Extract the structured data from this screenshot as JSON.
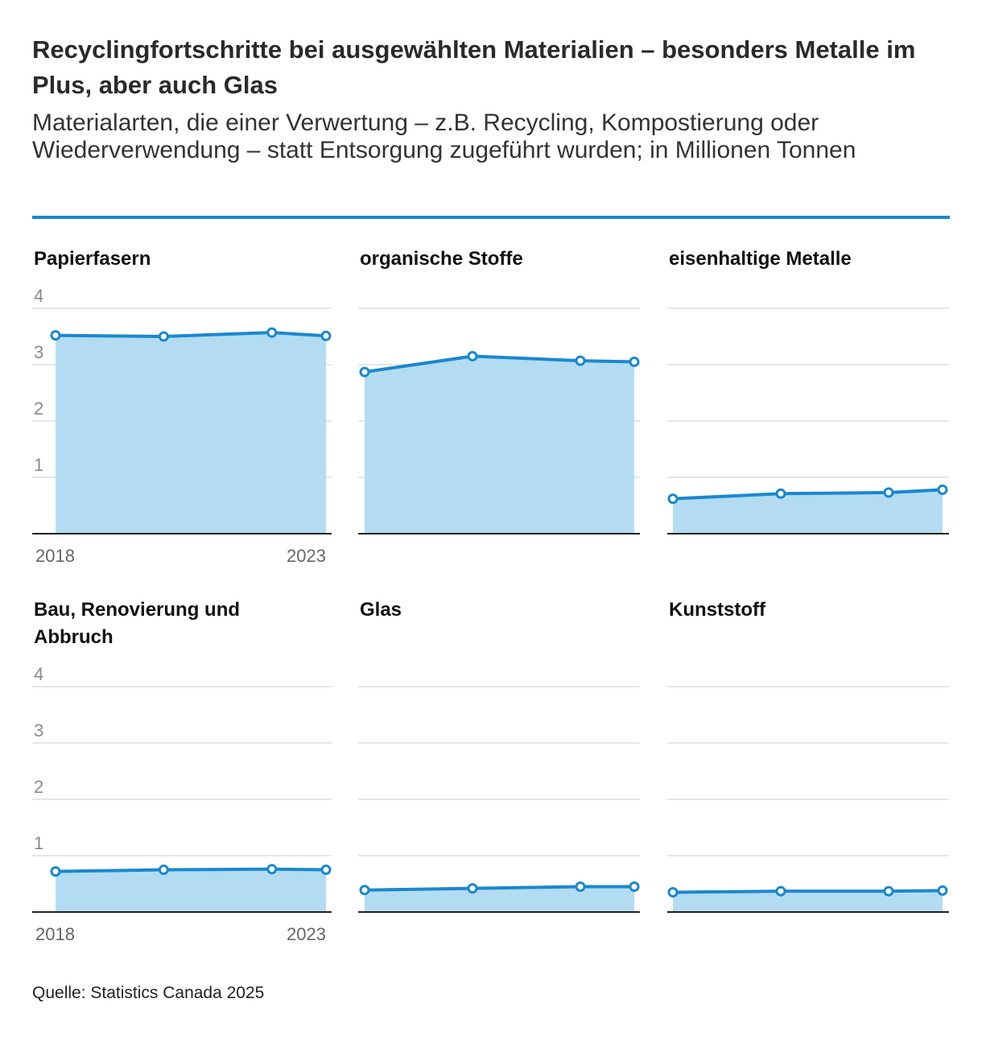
{
  "header": {
    "title": "Recyclingfortschritte bei ausgewählten Materialien – besonders Metalle im Plus, aber auch Glas",
    "subtitle": "Materialarten, die einer Verwertung – z.B. Recycling, Kompostierung oder Wiederverwendung – statt Entsorgung zugeführt wurden; in Millionen Tonnen"
  },
  "footer": {
    "source": "Quelle: Statistics Canada 2025"
  },
  "colors": {
    "line": "#1a88cf",
    "area": "#b3dcf2",
    "grid": "#dddddd",
    "axis": "#222222",
    "tick": "#8a8a8a"
  },
  "chart_data": [
    {
      "type": "area",
      "title": "Papierfasern",
      "x": [
        2018,
        2020,
        2022,
        2023
      ],
      "values": [
        3.52,
        3.5,
        3.57,
        3.51
      ],
      "ylim": [
        0,
        4
      ],
      "yticks": [
        "1",
        "2",
        "3",
        "4"
      ],
      "xtick_labels": [
        "2018",
        "2023"
      ],
      "show_axis_labels": true
    },
    {
      "type": "area",
      "title": "organische Stoffe",
      "x": [
        2018,
        2020,
        2022,
        2023
      ],
      "values": [
        2.87,
        3.15,
        3.07,
        3.05
      ],
      "ylim": [
        0,
        4
      ],
      "yticks": [
        "1",
        "2",
        "3",
        "4"
      ],
      "xtick_labels": [
        "2018",
        "2023"
      ],
      "show_axis_labels": false
    },
    {
      "type": "area",
      "title": "eisenhaltige Metalle",
      "x": [
        2018,
        2020,
        2022,
        2023
      ],
      "values": [
        0.62,
        0.71,
        0.73,
        0.78
      ],
      "ylim": [
        0,
        4
      ],
      "yticks": [
        "1",
        "2",
        "3",
        "4"
      ],
      "xtick_labels": [
        "2018",
        "2023"
      ],
      "show_axis_labels": false
    },
    {
      "type": "area",
      "title": "Bau, Renovierung und Abbruch",
      "x": [
        2018,
        2020,
        2022,
        2023
      ],
      "values": [
        0.72,
        0.75,
        0.76,
        0.75
      ],
      "ylim": [
        0,
        4
      ],
      "yticks": [
        "1",
        "2",
        "3",
        "4"
      ],
      "xtick_labels": [
        "2018",
        "2023"
      ],
      "show_axis_labels": true
    },
    {
      "type": "area",
      "title": "Glas",
      "x": [
        2018,
        2020,
        2022,
        2023
      ],
      "values": [
        0.39,
        0.42,
        0.45,
        0.45
      ],
      "ylim": [
        0,
        4
      ],
      "yticks": [
        "1",
        "2",
        "3",
        "4"
      ],
      "xtick_labels": [
        "2018",
        "2023"
      ],
      "show_axis_labels": false
    },
    {
      "type": "area",
      "title": "Kunststoff",
      "x": [
        2018,
        2020,
        2022,
        2023
      ],
      "values": [
        0.35,
        0.37,
        0.37,
        0.38
      ],
      "ylim": [
        0,
        4
      ],
      "yticks": [
        "1",
        "2",
        "3",
        "4"
      ],
      "xtick_labels": [
        "2018",
        "2023"
      ],
      "show_axis_labels": false
    }
  ]
}
